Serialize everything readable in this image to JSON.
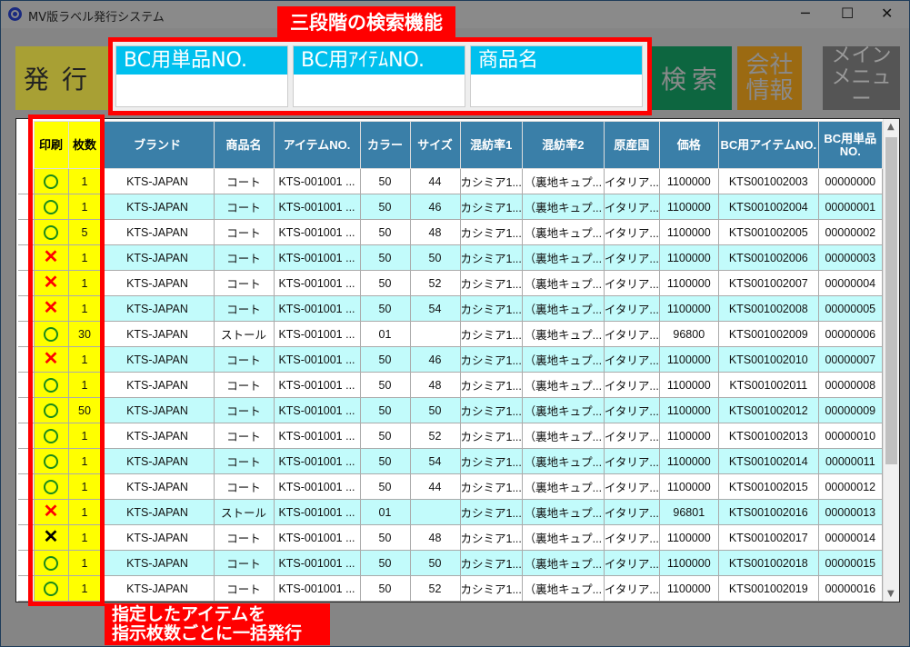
{
  "window": {
    "title": "MV版ラベル発行システム",
    "minimize": "─",
    "maximize": "☐",
    "close": "✕"
  },
  "toolbar": {
    "issue": "発行",
    "search": "検索",
    "company": "会社情報",
    "main_menu": "メイン メニュー"
  },
  "search_fields": [
    {
      "label": "BC用単品NO.",
      "value": "",
      "placeholder": ""
    },
    {
      "label": "BC用ｱｲﾃﾑNO.",
      "value": "",
      "placeholder": ""
    },
    {
      "label": "商品名",
      "value": "",
      "placeholder": ""
    }
  ],
  "annotations": {
    "search_callout": "三段階の検索機能",
    "issue_callout_line1": "指定したアイテムを",
    "issue_callout_line2": "指示枚数ごとに一括発行"
  },
  "colors": {
    "accent_highlight": "#ff0000",
    "header": "#3a7fa8",
    "print_cols": "#ffff00",
    "alt_row": "#c2fbfb",
    "search_label": "#00c0ee",
    "mark_ok": "#1a8a1a",
    "mark_ng": "#ff0000"
  },
  "table": {
    "columns": [
      "印刷",
      "枚数",
      "ブランド",
      "商品名",
      "アイテムNO.",
      "カラー",
      "サイズ",
      "混紡率1",
      "混紡率2",
      "原産国",
      "価格",
      "BC用アイテムNO.",
      "BC用単品NO."
    ],
    "rows": [
      {
        "print": "○",
        "count": "1",
        "brand": "KTS-JAPAN",
        "name": "コート",
        "item": "KTS-001001 ...",
        "color": "50",
        "size": "44",
        "mix1": "カシミア1...",
        "mix2": "（裏地キュプ...",
        "origin": "イタリア...",
        "price": "1100000",
        "bc_item": "KTS001002003",
        "bc_single": "00000000"
      },
      {
        "print": "○",
        "count": "1",
        "brand": "KTS-JAPAN",
        "name": "コート",
        "item": "KTS-001001 ...",
        "color": "50",
        "size": "46",
        "mix1": "カシミア1...",
        "mix2": "（裏地キュプ...",
        "origin": "イタリア...",
        "price": "1100000",
        "bc_item": "KTS001002004",
        "bc_single": "00000001"
      },
      {
        "print": "○",
        "count": "5",
        "brand": "KTS-JAPAN",
        "name": "コート",
        "item": "KTS-001001 ...",
        "color": "50",
        "size": "48",
        "mix1": "カシミア1...",
        "mix2": "（裏地キュプ...",
        "origin": "イタリア...",
        "price": "1100000",
        "bc_item": "KTS001002005",
        "bc_single": "00000002"
      },
      {
        "print": "✕",
        "count": "1",
        "brand": "KTS-JAPAN",
        "name": "コート",
        "item": "KTS-001001 ...",
        "color": "50",
        "size": "50",
        "mix1": "カシミア1...",
        "mix2": "（裏地キュプ...",
        "origin": "イタリア...",
        "price": "1100000",
        "bc_item": "KTS001002006",
        "bc_single": "00000003"
      },
      {
        "print": "✕",
        "count": "1",
        "brand": "KTS-JAPAN",
        "name": "コート",
        "item": "KTS-001001 ...",
        "color": "50",
        "size": "52",
        "mix1": "カシミア1...",
        "mix2": "（裏地キュプ...",
        "origin": "イタリア...",
        "price": "1100000",
        "bc_item": "KTS001002007",
        "bc_single": "00000004"
      },
      {
        "print": "✕",
        "count": "1",
        "brand": "KTS-JAPAN",
        "name": "コート",
        "item": "KTS-001001 ...",
        "color": "50",
        "size": "54",
        "mix1": "カシミア1...",
        "mix2": "（裏地キュプ...",
        "origin": "イタリア...",
        "price": "1100000",
        "bc_item": "KTS001002008",
        "bc_single": "00000005"
      },
      {
        "print": "○",
        "count": "30",
        "brand": "KTS-JAPAN",
        "name": "ストール",
        "item": "KTS-001001 ...",
        "color": "01",
        "size": "",
        "mix1": "カシミア1...",
        "mix2": "（裏地キュプ...",
        "origin": "イタリア...",
        "price": "96800",
        "bc_item": "KTS001002009",
        "bc_single": "00000006"
      },
      {
        "print": "✕",
        "count": "1",
        "brand": "KTS-JAPAN",
        "name": "コート",
        "item": "KTS-001001 ...",
        "color": "50",
        "size": "46",
        "mix1": "カシミア1...",
        "mix2": "（裏地キュプ...",
        "origin": "イタリア...",
        "price": "1100000",
        "bc_item": "KTS001002010",
        "bc_single": "00000007"
      },
      {
        "print": "○",
        "count": "1",
        "brand": "KTS-JAPAN",
        "name": "コート",
        "item": "KTS-001001 ...",
        "color": "50",
        "size": "48",
        "mix1": "カシミア1...",
        "mix2": "（裏地キュプ...",
        "origin": "イタリア...",
        "price": "1100000",
        "bc_item": "KTS001002011",
        "bc_single": "00000008"
      },
      {
        "print": "○",
        "count": "50",
        "brand": "KTS-JAPAN",
        "name": "コート",
        "item": "KTS-001001 ...",
        "color": "50",
        "size": "50",
        "mix1": "カシミア1...",
        "mix2": "（裏地キュプ...",
        "origin": "イタリア...",
        "price": "1100000",
        "bc_item": "KTS001002012",
        "bc_single": "00000009"
      },
      {
        "print": "○",
        "count": "1",
        "brand": "KTS-JAPAN",
        "name": "コート",
        "item": "KTS-001001 ...",
        "color": "50",
        "size": "52",
        "mix1": "カシミア1...",
        "mix2": "（裏地キュプ...",
        "origin": "イタリア...",
        "price": "1100000",
        "bc_item": "KTS001002013",
        "bc_single": "00000010"
      },
      {
        "print": "○",
        "count": "1",
        "brand": "KTS-JAPAN",
        "name": "コート",
        "item": "KTS-001001 ...",
        "color": "50",
        "size": "54",
        "mix1": "カシミア1...",
        "mix2": "（裏地キュプ...",
        "origin": "イタリア...",
        "price": "1100000",
        "bc_item": "KTS001002014",
        "bc_single": "00000011"
      },
      {
        "print": "○",
        "count": "1",
        "brand": "KTS-JAPAN",
        "name": "コート",
        "item": "KTS-001001 ...",
        "color": "50",
        "size": "44",
        "mix1": "カシミア1...",
        "mix2": "（裏地キュプ...",
        "origin": "イタリア...",
        "price": "1100000",
        "bc_item": "KTS001002015",
        "bc_single": "00000012"
      },
      {
        "print": "✕",
        "count": "1",
        "brand": "KTS-JAPAN",
        "name": "ストール",
        "item": "KTS-001001 ...",
        "color": "01",
        "size": "",
        "mix1": "カシミア1...",
        "mix2": "（裏地キュプ...",
        "origin": "イタリア...",
        "price": "96801",
        "bc_item": "KTS001002016",
        "bc_single": "00000013"
      },
      {
        "print": "✕",
        "count": "1",
        "brand": "KTS-JAPAN",
        "name": "コート",
        "item": "KTS-001001 ...",
        "color": "50",
        "size": "48",
        "mix1": "カシミア1...",
        "mix2": "（裏地キュプ...",
        "origin": "イタリア...",
        "price": "1100000",
        "bc_item": "KTS001002017",
        "bc_single": "00000014",
        "mark_color": "#000000"
      },
      {
        "print": "○",
        "count": "1",
        "brand": "KTS-JAPAN",
        "name": "コート",
        "item": "KTS-001001 ...",
        "color": "50",
        "size": "50",
        "mix1": "カシミア1...",
        "mix2": "（裏地キュプ...",
        "origin": "イタリア...",
        "price": "1100000",
        "bc_item": "KTS001002018",
        "bc_single": "00000015"
      },
      {
        "print": "○",
        "count": "1",
        "brand": "KTS-JAPAN",
        "name": "コート",
        "item": "KTS-001001 ...",
        "color": "50",
        "size": "52",
        "mix1": "カシミア1...",
        "mix2": "（裏地キュプ...",
        "origin": "イタリア...",
        "price": "1100000",
        "bc_item": "KTS001002019",
        "bc_single": "00000016"
      }
    ]
  }
}
